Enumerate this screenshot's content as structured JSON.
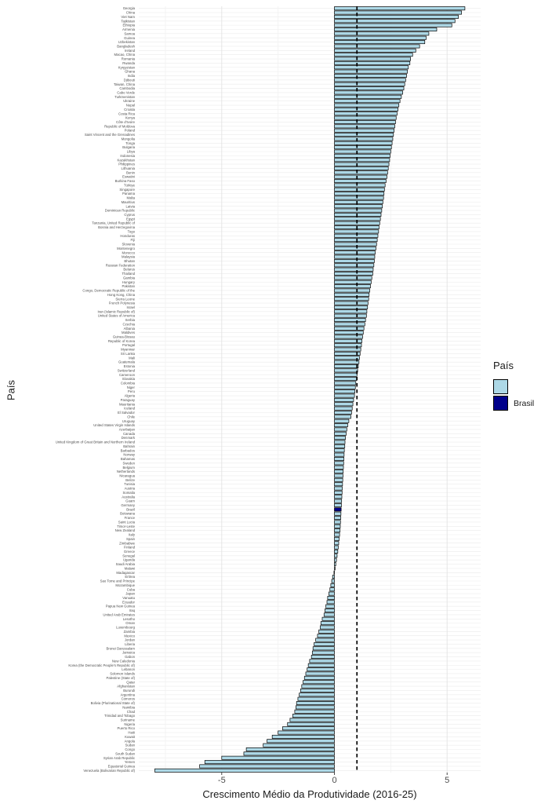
{
  "chart_data": {
    "type": "bar",
    "orientation": "horizontal",
    "title": "",
    "xlabel": "Crescimento Médio da Produtividade (2016-25)",
    "ylabel": "País",
    "xticks": [
      "-5",
      "0",
      "5"
    ],
    "xtick_values": [
      -5,
      0,
      5
    ],
    "xlim": [
      -8.7,
      6.5
    ],
    "grid": true,
    "legend_position": "right",
    "reference_line": {
      "x": 1.0,
      "style": "dashed",
      "color": "#000000"
    },
    "bar_fill": "#ADD8E6",
    "bar_stroke": "#000000",
    "highlight": {
      "name": "Brazil",
      "color": "#00008B"
    },
    "legend": {
      "title": "País",
      "items": [
        {
          "label": "",
          "color": "#ADD8E6"
        },
        {
          "label": "Brasil",
          "color": "#00008B"
        }
      ]
    },
    "series": [
      [
        "Georgia",
        5.79
      ],
      [
        "China",
        5.64
      ],
      [
        "Viet Nam",
        5.5
      ],
      [
        "Tajikistan",
        5.35
      ],
      [
        "Ethiopia",
        5.21
      ],
      [
        "Armenia",
        4.54
      ],
      [
        "Samoa",
        4.19
      ],
      [
        "Guinea",
        4.07
      ],
      [
        "Uzbekistan",
        4.01
      ],
      [
        "Bangladesh",
        3.78
      ],
      [
        "Ireland",
        3.61
      ],
      [
        "Macao, China",
        3.47
      ],
      [
        "Romania",
        3.38
      ],
      [
        "Rwanda",
        3.35
      ],
      [
        "Kyrgyzstan",
        3.28
      ],
      [
        "Ghana",
        3.24
      ],
      [
        "India",
        3.2
      ],
      [
        "Djibouti",
        3.16
      ],
      [
        "Taiwan, China",
        3.12
      ],
      [
        "Cambodia",
        3.08
      ],
      [
        "Cabo Verde",
        3.03
      ],
      [
        "Turkmenistan",
        2.97
      ],
      [
        "Ukraine",
        2.91
      ],
      [
        "Nepal",
        2.86
      ],
      [
        "Croatia",
        2.82
      ],
      [
        "Costa Rica",
        2.78
      ],
      [
        "Kenya",
        2.74
      ],
      [
        "Côte d'Ivoire",
        2.71
      ],
      [
        "Republic of Moldova",
        2.68
      ],
      [
        "Poland",
        2.65
      ],
      [
        "Saint Vincent and the Grenadines",
        2.62
      ],
      [
        "Mongolia",
        2.59
      ],
      [
        "Tonga",
        2.56
      ],
      [
        "Bulgaria",
        2.53
      ],
      [
        "Libya",
        2.5
      ],
      [
        "Indonesia",
        2.47
      ],
      [
        "Kazakhstan",
        2.45
      ],
      [
        "Philippines",
        2.42
      ],
      [
        "Lithuania",
        2.39
      ],
      [
        "Benin",
        2.36
      ],
      [
        "Eswatini",
        2.33
      ],
      [
        "Burkina Faso",
        2.29
      ],
      [
        "Türkiye",
        2.25
      ],
      [
        "Singapore",
        2.22
      ],
      [
        "Panama",
        2.2
      ],
      [
        "Malta",
        2.18
      ],
      [
        "Mauritius",
        2.15
      ],
      [
        "Latvia",
        2.13
      ],
      [
        "Dominican Republic",
        2.1
      ],
      [
        "Cyprus",
        2.07
      ],
      [
        "Egypt",
        2.04
      ],
      [
        "Tanzania, United Republic of",
        2.01
      ],
      [
        "Bosnia and Herzegovina",
        1.98
      ],
      [
        "Togo",
        1.96
      ],
      [
        "Honduras",
        1.93
      ],
      [
        "Fiji",
        1.9
      ],
      [
        "Slovenia",
        1.87
      ],
      [
        "Montenegro",
        1.84
      ],
      [
        "Morocco",
        1.81
      ],
      [
        "Malaysia",
        1.79
      ],
      [
        "Bhutan",
        1.77
      ],
      [
        "Russian Federation",
        1.75
      ],
      [
        "Belarus",
        1.72
      ],
      [
        "Thailand",
        1.7
      ],
      [
        "Gambia",
        1.66
      ],
      [
        "Hungary",
        1.63
      ],
      [
        "Pakistan",
        1.6
      ],
      [
        "Congo, Democratic Republic of the",
        1.57
      ],
      [
        "Hong Kong, China",
        1.54
      ],
      [
        "Sierra Leone",
        1.52
      ],
      [
        "French Polynesia",
        1.49
      ],
      [
        "Israel",
        1.47
      ],
      [
        "Iran (Islamic Republic of)",
        1.44
      ],
      [
        "United States of America",
        1.42
      ],
      [
        "Serbia",
        1.38
      ],
      [
        "Czechia",
        1.35
      ],
      [
        "Albania",
        1.31
      ],
      [
        "Maldives",
        1.28
      ],
      [
        "Guinea-Bissau",
        1.25
      ],
      [
        "Republic of Korea",
        1.22
      ],
      [
        "Portugal",
        1.2
      ],
      [
        "Myanmar",
        1.17
      ],
      [
        "Sri Lanka",
        1.14
      ],
      [
        "Mali",
        1.11
      ],
      [
        "Guatemala",
        1.09
      ],
      [
        "Estonia",
        1.06
      ],
      [
        "Switzerland",
        1.03
      ],
      [
        "Cameroon",
        1.0
      ],
      [
        "Slovakia",
        0.98
      ],
      [
        "Colombia",
        0.95
      ],
      [
        "Niger",
        0.93
      ],
      [
        "Peru",
        0.91
      ],
      [
        "Algeria",
        0.89
      ],
      [
        "Paraguay",
        0.85
      ],
      [
        "Mauritania",
        0.82
      ],
      [
        "Iceland",
        0.79
      ],
      [
        "El Salvador",
        0.76
      ],
      [
        "Chile",
        0.73
      ],
      [
        "Uruguay",
        0.64
      ],
      [
        "United States Virgin Islands",
        0.59
      ],
      [
        "Azerbaijan",
        0.55
      ],
      [
        "Canada",
        0.52
      ],
      [
        "Denmark",
        0.49
      ],
      [
        "United Kingdom of Great Britain and Northern Ireland",
        0.47
      ],
      [
        "Bahrain",
        0.46
      ],
      [
        "Barbados",
        0.44
      ],
      [
        "Norway",
        0.43
      ],
      [
        "Bahamas",
        0.42
      ],
      [
        "Sweden",
        0.41
      ],
      [
        "Belgium",
        0.4
      ],
      [
        "Netherlands",
        0.39
      ],
      [
        "Nicaragua",
        0.38
      ],
      [
        "Belize",
        0.37
      ],
      [
        "Tunisia",
        0.36
      ],
      [
        "Austria",
        0.35
      ],
      [
        "Somalia",
        0.34
      ],
      [
        "Australia",
        0.33
      ],
      [
        "Guam",
        0.32
      ],
      [
        "Germany",
        0.31
      ],
      [
        "Brazil",
        0.3
      ],
      [
        "Botswana",
        0.29
      ],
      [
        "France",
        0.28
      ],
      [
        "Saint Lucia",
        0.27
      ],
      [
        "Timor-Leste",
        0.26
      ],
      [
        "New Zealand",
        0.25
      ],
      [
        "Italy",
        0.23
      ],
      [
        "Spain",
        0.21
      ],
      [
        "Zimbabwe",
        0.19
      ],
      [
        "Finland",
        0.17
      ],
      [
        "Greece",
        0.15
      ],
      [
        "Senegal",
        0.12
      ],
      [
        "Uganda",
        0.09
      ],
      [
        "Saudi Arabia",
        0.06
      ],
      [
        "Malawi",
        0.03
      ],
      [
        "Madagascar",
        -0.02
      ],
      [
        "Eritrea",
        -0.08
      ],
      [
        "Sao Tome and Principe",
        -0.12
      ],
      [
        "Mozambique",
        -0.16
      ],
      [
        "Cuba",
        -0.2
      ],
      [
        "Japan",
        -0.25
      ],
      [
        "Vanuatu",
        -0.3
      ],
      [
        "Ecuador",
        -0.33
      ],
      [
        "Papua New Guinea",
        -0.38
      ],
      [
        "Iraq",
        -0.42
      ],
      [
        "United Arab Emirates",
        -0.46
      ],
      [
        "Lesotho",
        -0.54
      ],
      [
        "Oman",
        -0.6
      ],
      [
        "Luxembourg",
        -0.63
      ],
      [
        "Zambia",
        -0.69
      ],
      [
        "Mexico",
        -0.75
      ],
      [
        "Jordan",
        -0.83
      ],
      [
        "Liberia",
        -0.9
      ],
      [
        "Brunei Darussalam",
        -0.95
      ],
      [
        "Jamaica",
        -0.98
      ],
      [
        "Gabon",
        -1.02
      ],
      [
        "New Caledonia",
        -1.1
      ],
      [
        "Korea (the Democratic People's Republic of)",
        -1.16
      ],
      [
        "Lebanon",
        -1.21
      ],
      [
        "Solomon Islands",
        -1.27
      ],
      [
        "Palestine (State of)",
        -1.33
      ],
      [
        "Qatar",
        -1.39
      ],
      [
        "Afghanistan",
        -1.45
      ],
      [
        "Burundi",
        -1.5
      ],
      [
        "Argentina",
        -1.56
      ],
      [
        "Comoros",
        -1.62
      ],
      [
        "Bolivia (Plurinational State of)",
        -1.68
      ],
      [
        "Namibia",
        -1.71
      ],
      [
        "Chad",
        -1.76
      ],
      [
        "Trinidad and Tobago",
        -1.85
      ],
      [
        "Suriname",
        -1.97
      ],
      [
        "Nigeria",
        -2.08
      ],
      [
        "Puerto Rico",
        -2.3
      ],
      [
        "Haiti",
        -2.5
      ],
      [
        "Kuwait",
        -2.76
      ],
      [
        "Angola",
        -2.99
      ],
      [
        "Sudan",
        -3.16
      ],
      [
        "Congo",
        -3.91
      ],
      [
        "South Sudan",
        -4.02
      ],
      [
        "Syrian Arab Republic",
        -5.0
      ],
      [
        "Yemen",
        -5.75
      ],
      [
        "Equatorial Guinea",
        -5.98
      ],
      [
        "Venezuela (Bolivarian Republic of)",
        -7.97
      ]
    ]
  }
}
